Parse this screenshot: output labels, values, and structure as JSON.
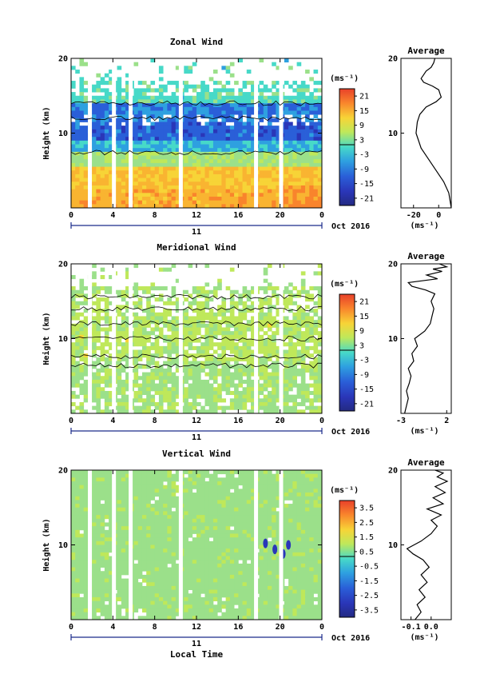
{
  "chart_data": [
    {
      "type": "heatmap",
      "title": "Zonal Wind",
      "ylabel": "Height (km)",
      "yticks": [
        "10",
        "20"
      ],
      "ylim": [
        0,
        20
      ],
      "xticks": [
        "0",
        "4",
        "8",
        "12",
        "16",
        "20",
        "0"
      ],
      "xlim": [
        0,
        24
      ],
      "date_marker": "11",
      "date_label": "Oct 2016",
      "colorbar": {
        "unit": "(ms⁻¹)",
        "ticks": [
          "21",
          "15",
          "9",
          "3",
          "-3",
          "-9",
          "-15",
          "-21"
        ],
        "range": [
          -24,
          24
        ]
      },
      "white_gaps_hours": [
        1.8,
        4.1,
        5.7,
        10.5,
        17.7,
        20.1
      ],
      "profile": {
        "title": "Average",
        "xticks": [
          "-20",
          "0"
        ],
        "xlabel": "(ms⁻¹)",
        "yticks": [
          "10",
          "20"
        ],
        "xlim": [
          -30,
          10
        ],
        "x": [
          10,
          8,
          4,
          -2,
          -8,
          -14,
          -18,
          -17,
          -15,
          -10,
          -2,
          2,
          1,
          0,
          -5,
          -12,
          -14,
          -12,
          -10,
          -6,
          -4,
          -3
        ],
        "y": [
          0,
          2,
          3.5,
          5,
          6.5,
          8,
          10,
          11.5,
          12.5,
          13.5,
          14.2,
          14.8,
          15.3,
          15.8,
          16.3,
          16.8,
          17.3,
          17.8,
          18.3,
          18.8,
          19.4,
          20
        ]
      }
    },
    {
      "type": "heatmap",
      "title": "Meridional Wind",
      "ylabel": "Height (km)",
      "yticks": [
        "10",
        "20"
      ],
      "ylim": [
        0,
        20
      ],
      "xticks": [
        "0",
        "4",
        "8",
        "12",
        "16",
        "20",
        "0"
      ],
      "xlim": [
        0,
        24
      ],
      "date_marker": "11",
      "date_label": "Oct 2016",
      "colorbar": {
        "unit": "(ms⁻¹)",
        "ticks": [
          "21",
          "15",
          "9",
          "3",
          "-3",
          "-9",
          "-15",
          "-21"
        ],
        "range": [
          -24,
          24
        ]
      },
      "white_gaps_hours": [
        1.8,
        4.1,
        5.7,
        10.5,
        17.7,
        20.1
      ],
      "profile": {
        "title": "Average",
        "xticks": [
          "-3",
          "2"
        ],
        "xlabel": "(ms⁻¹)",
        "yticks": [
          "10",
          "20"
        ],
        "xlim": [
          -3,
          2.5
        ],
        "x": [
          -2.6,
          -2.4,
          -2.2,
          -2.4,
          -2.1,
          -1.9,
          -2.2,
          -1.6,
          -1.8,
          -1.2,
          -1.5,
          -0.4,
          0.2,
          0.4,
          0.6,
          0.3,
          0.7,
          -0.3,
          -1.8,
          -2.2,
          1.0,
          -0.2,
          1.5,
          0.5,
          2.0,
          1.2
        ],
        "y": [
          0,
          1,
          2,
          3,
          4,
          5,
          6,
          7,
          8,
          9,
          10,
          11,
          12,
          13,
          14,
          15,
          16,
          16.5,
          17,
          17.5,
          18,
          18.5,
          19,
          19.3,
          19.6,
          20
        ]
      }
    },
    {
      "type": "heatmap",
      "title": "Vertical Wind",
      "ylabel": "Height (km)",
      "xlabel": "Local Time",
      "yticks": [
        "10",
        "20"
      ],
      "ylim": [
        0,
        20
      ],
      "xticks": [
        "0",
        "4",
        "8",
        "12",
        "16",
        "20",
        "0"
      ],
      "xlim": [
        0,
        24
      ],
      "date_marker": "11",
      "date_label": "Oct 2016",
      "colorbar": {
        "unit": "(ms⁻¹)",
        "ticks": [
          "3.5",
          "2.5",
          "1.5",
          "0.5",
          "-0.5",
          "-1.5",
          "-2.5",
          "-3.5"
        ],
        "range": [
          -4,
          4
        ]
      },
      "white_gaps_hours": [
        1.8,
        4.1,
        5.7,
        10.5,
        17.7,
        20.1
      ],
      "profile": {
        "title": "Average",
        "xticks": [
          "-0.1",
          "0.0"
        ],
        "xlabel": "(ms⁻¹)",
        "yticks": [
          "10",
          "20"
        ],
        "xlim": [
          -0.15,
          0.1
        ],
        "x": [
          -0.08,
          -0.05,
          -0.07,
          -0.03,
          -0.06,
          -0.02,
          -0.05,
          -0.01,
          -0.04,
          -0.09,
          -0.12,
          -0.05,
          0.0,
          0.03,
          0.0,
          0.05,
          -0.02,
          0.06,
          0.01,
          0.07,
          0.02,
          0.08,
          0.03,
          0.06,
          0.02
        ],
        "y": [
          0,
          1,
          2,
          3,
          4,
          5,
          6,
          7,
          8,
          8.8,
          9.5,
          10.5,
          11.5,
          12.5,
          13.3,
          14,
          14.8,
          15.5,
          16.3,
          17,
          17.8,
          18.5,
          19.1,
          19.6,
          20
        ]
      }
    }
  ]
}
